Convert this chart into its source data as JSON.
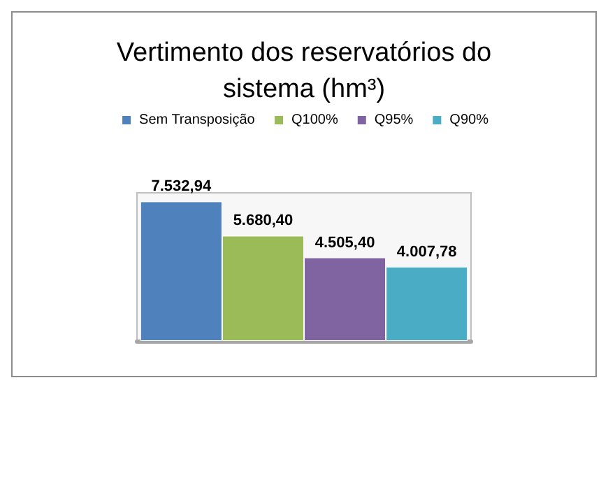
{
  "chart_data": {
    "type": "bar",
    "title": "Vertimento dos reservatórios do sistema (hm³)",
    "categories": [
      null
    ],
    "series": [
      {
        "name": "Sem Transposição",
        "color": "#4f81bd",
        "values": [
          7532.94
        ],
        "value_labels": [
          "7.532,94"
        ]
      },
      {
        "name": "Q100%",
        "color": "#9bbb59",
        "values": [
          5680.4
        ],
        "value_labels": [
          "5.680,40"
        ]
      },
      {
        "name": "Q95%",
        "color": "#8064a2",
        "values": [
          4505.4
        ],
        "value_labels": [
          "4.505,40"
        ]
      },
      {
        "name": "Q90%",
        "color": "#4bacc6",
        "values": [
          4007.78
        ],
        "value_labels": [
          "4.007,78"
        ]
      }
    ],
    "legend": "top"
  }
}
